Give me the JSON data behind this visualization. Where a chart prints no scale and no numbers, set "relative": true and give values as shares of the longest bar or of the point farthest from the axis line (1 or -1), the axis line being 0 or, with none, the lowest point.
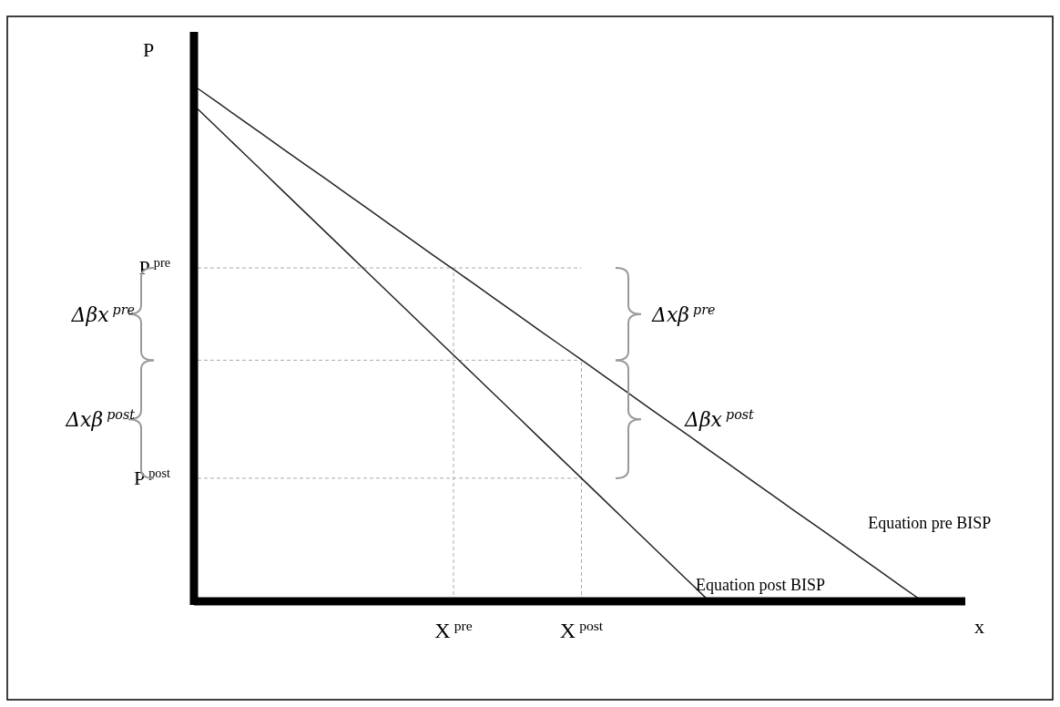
{
  "chart_data": {
    "type": "line",
    "relative": true,
    "xlabel": "x",
    "ylabel": "P",
    "categories": [
      null,
      null,
      null,
      null,
      null,
      null,
      null,
      null,
      null,
      null,
      null,
      null,
      "X$^{pre}$",
      null,
      null,
      null,
      null,
      null,
      "X$^{post}$",
      null,
      null,
      null,
      null,
      null,
      null,
      null,
      null,
      null,
      null,
      null,
      null,
      null,
      null,
      null,
      null,
      null
    ],
    "marker": "none",
    "line_style": "solid",
    "series": [
      {
        "name": "Equation pre BISP",
        "color": "#222222",
        "values": [
          1,
          0.971,
          0.941,
          0.912,
          0.882,
          0.853,
          0.824,
          0.794,
          0.765,
          0.735,
          0.706,
          0.676,
          0.647,
          0.618,
          0.588,
          0.559,
          0.529,
          0.5,
          0.471,
          0.441,
          0.412,
          0.382,
          0.353,
          0.324,
          0.294,
          0.265,
          0.235,
          0.206,
          0.176,
          0.147,
          0.118,
          0.088,
          0.059,
          0.029,
          0,
          null
        ]
      },
      {
        "name": "Equation post BISP",
        "color": "#222222",
        "values": [
          0.96,
          0.92,
          0.88,
          0.84,
          0.8,
          0.76,
          0.72,
          0.68,
          0.64,
          0.6,
          0.56,
          0.52,
          0.48,
          0.44,
          0.4,
          0.36,
          0.32,
          0.28,
          0.24,
          0.2,
          0.16,
          0.12,
          0.08,
          0.04,
          0,
          null,
          null,
          null,
          null,
          null,
          null,
          null,
          null,
          null,
          null,
          null
        ]
      }
    ],
    "ref_lines": [
      {
        "axis": "y",
        "value": 0.65,
        "label": "P$^{pre}$",
        "color": "#aaaaaa",
        "line_style": "dashed"
      },
      {
        "axis": "y",
        "value": 0.47,
        "label": null,
        "color": "#aaaaaa",
        "line_style": "dashed"
      },
      {
        "axis": "y",
        "value": 0.24,
        "label": "P$^{post}$",
        "color": "#aaaaaa",
        "line_style": "dashed"
      },
      {
        "axis": "x",
        "value": "X$^{pre}$",
        "label": null,
        "color": "#aaaaaa",
        "line_style": "dashed"
      },
      {
        "axis": "x",
        "value": "X$^{post}$",
        "label": null,
        "color": "#aaaaaa",
        "line_style": "dashed"
      }
    ],
    "annotations": [
      "Δβx$^{pre}$",
      "Δxβ$^{post}$",
      "Δxβ$^{pre}$",
      "Δβx$^{post}$"
    ]
  }
}
